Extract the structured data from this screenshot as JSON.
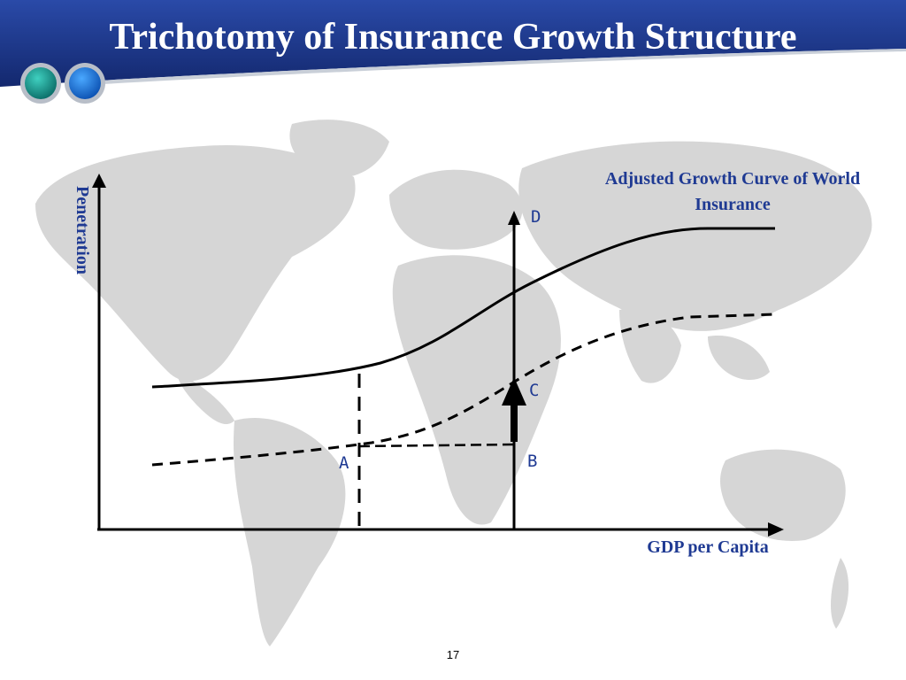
{
  "header": {
    "title": "Trichotomy of Insurance Growth Structure",
    "bar_color": "#1f3a93"
  },
  "diagram": {
    "y_axis_label": "Penetration",
    "x_axis_label": "GDP per Capita",
    "curve_label": "Adjusted Growth Curve of World Insurance",
    "points": {
      "a": "A",
      "b": "B",
      "c": "C",
      "d": "D"
    },
    "label_color": "#1f3a93"
  },
  "footer": {
    "page_number": "17"
  }
}
